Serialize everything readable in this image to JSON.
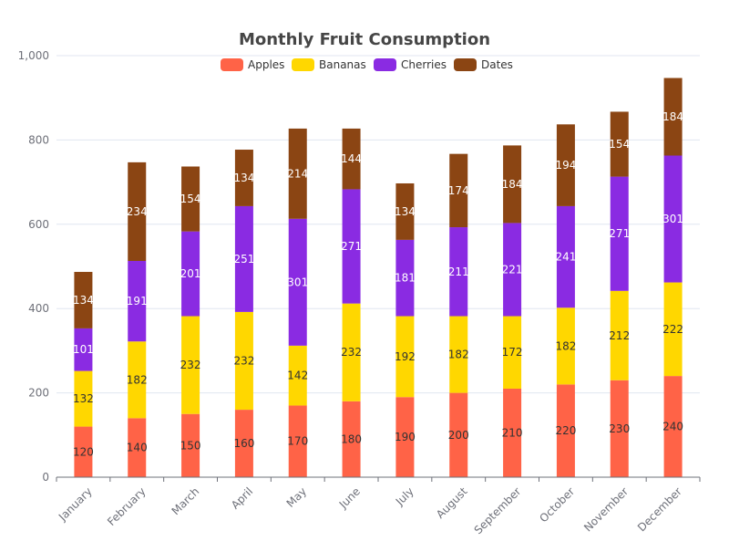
{
  "chart_data": {
    "type": "bar",
    "stacked": true,
    "title": "Monthly Fruit Consumption",
    "categories": [
      "January",
      "February",
      "March",
      "April",
      "May",
      "June",
      "July",
      "August",
      "September",
      "October",
      "November",
      "December"
    ],
    "series": [
      {
        "name": "Apples",
        "color": "#FF6347",
        "label_color": "#333333",
        "values": [
          120,
          140,
          150,
          160,
          170,
          180,
          190,
          200,
          210,
          220,
          230,
          240
        ]
      },
      {
        "name": "Bananas",
        "color": "#FFD700",
        "label_color": "#333333",
        "values": [
          132,
          182,
          232,
          232,
          142,
          232,
          192,
          182,
          172,
          182,
          212,
          222
        ]
      },
      {
        "name": "Cherries",
        "color": "#8A2BE2",
        "label_color": "#ffffff",
        "values": [
          101,
          191,
          201,
          251,
          301,
          271,
          181,
          211,
          221,
          241,
          271,
          301
        ]
      },
      {
        "name": "Dates",
        "color": "#8B4513",
        "label_color": "#ffffff",
        "values": [
          134,
          234,
          154,
          134,
          214,
          144,
          134,
          174,
          184,
          194,
          154,
          184
        ]
      }
    ],
    "yaxis": {
      "min": 0,
      "max": 1000,
      "tick_step": 200
    },
    "ytick_labels": [
      "0",
      "200",
      "400",
      "600",
      "800",
      "1,000"
    ],
    "grid": true,
    "legend_position": "top-center"
  }
}
